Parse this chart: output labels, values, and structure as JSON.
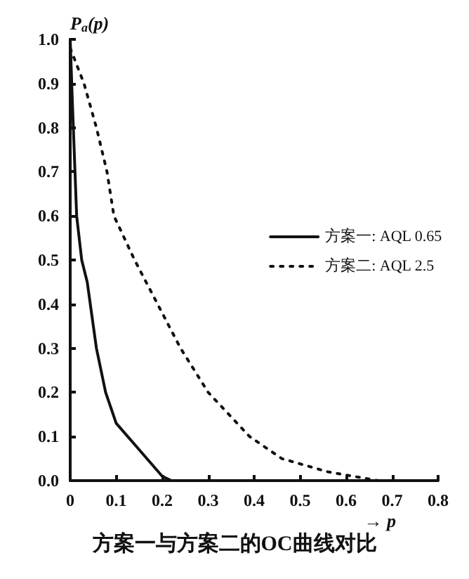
{
  "chart_data": {
    "type": "line",
    "title": "方案一与方案二的OC曲线对比",
    "xlabel": "→ p",
    "ylabel": "P$_{a}$(p)",
    "xlim": [
      0,
      0.8
    ],
    "xticks": [
      0,
      0.1,
      0.2,
      0.3,
      0.4,
      0.5,
      0.6,
      0.7,
      0.8
    ],
    "ylim": [
      0,
      1
    ],
    "yticks": [
      {
        "value": 0,
        "label": "0.0"
      },
      0.1,
      0.2,
      0.3,
      0.4,
      0.5,
      0.6,
      0.7,
      0.8,
      0.9,
      {
        "value": 1,
        "label": "1.0"
      }
    ],
    "legend": "right",
    "marker": "none",
    "grid": false,
    "series": [
      {
        "name": "方案一: AQL 0.65",
        "color": "#111111",
        "line_style": "solid",
        "x": [
          0,
          0.005,
          0.014,
          0.025,
          0.037,
          0.057,
          0.077,
          0.1,
          0.15,
          0.2,
          0.22,
          0.25
        ],
        "values": [
          1,
          0.85,
          0.6,
          0.5,
          0.45,
          0.3,
          0.2,
          0.13,
          0.07,
          0.01,
          0,
          0
        ]
      },
      {
        "name": "方案二: AQL 2.5",
        "color": "#111111",
        "line_style": "dotted",
        "x": [
          0,
          0.03,
          0.057,
          0.08,
          0.095,
          0.14,
          0.19,
          0.24,
          0.3,
          0.39,
          0.46,
          0.56,
          0.67
        ],
        "values": [
          0.98,
          0.9,
          0.8,
          0.7,
          0.6,
          0.5,
          0.4,
          0.3,
          0.2,
          0.1,
          0.05,
          0.02,
          0
        ]
      }
    ]
  }
}
